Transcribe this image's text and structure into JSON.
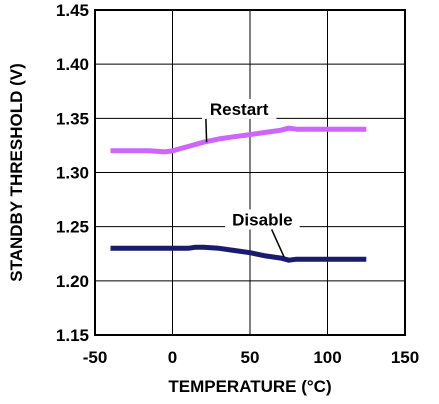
{
  "chart_data": {
    "type": "line",
    "title": "",
    "xlabel": "TEMPERATURE (°C)",
    "ylabel": "STANDBY THRESHOLD (V)",
    "xlim": [
      -50,
      150
    ],
    "ylim": [
      1.15,
      1.45
    ],
    "x_ticks": [
      -50,
      0,
      50,
      100,
      150
    ],
    "x_tick_labels": [
      "-50",
      "0",
      "50",
      "100",
      "150"
    ],
    "y_ticks": [
      1.15,
      1.2,
      1.25,
      1.3,
      1.35,
      1.4,
      1.45
    ],
    "y_tick_labels": [
      "1.15",
      "1.20",
      "1.25",
      "1.30",
      "1.35",
      "1.40",
      "1.45"
    ],
    "grid": true,
    "legend": "none",
    "series": [
      {
        "name": "Restart",
        "color": "#cc66ff",
        "x": [
          -40,
          -25,
          -15,
          -5,
          0,
          10,
          20,
          30,
          40,
          50,
          60,
          70,
          75,
          80,
          90,
          100,
          110,
          125
        ],
        "y": [
          1.32,
          1.32,
          1.32,
          1.319,
          1.32,
          1.324,
          1.328,
          1.331,
          1.333,
          1.335,
          1.337,
          1.339,
          1.341,
          1.34,
          1.34,
          1.34,
          1.34,
          1.34
        ]
      },
      {
        "name": "Disable",
        "color": "#1a1a6e",
        "x": [
          -40,
          -20,
          0,
          10,
          15,
          20,
          30,
          40,
          50,
          60,
          70,
          75,
          80,
          90,
          100,
          110,
          125
        ],
        "y": [
          1.23,
          1.23,
          1.23,
          1.23,
          1.231,
          1.231,
          1.23,
          1.228,
          1.226,
          1.223,
          1.221,
          1.219,
          1.22,
          1.22,
          1.22,
          1.22,
          1.22
        ]
      }
    ],
    "annotations": [
      {
        "text": "Restart",
        "x": 43,
        "y": 1.355,
        "arrow_to": [
          22,
          1.328
        ]
      },
      {
        "text": "Disable",
        "x": 58,
        "y": 1.253,
        "arrow_to": [
          72,
          1.222
        ]
      }
    ]
  }
}
